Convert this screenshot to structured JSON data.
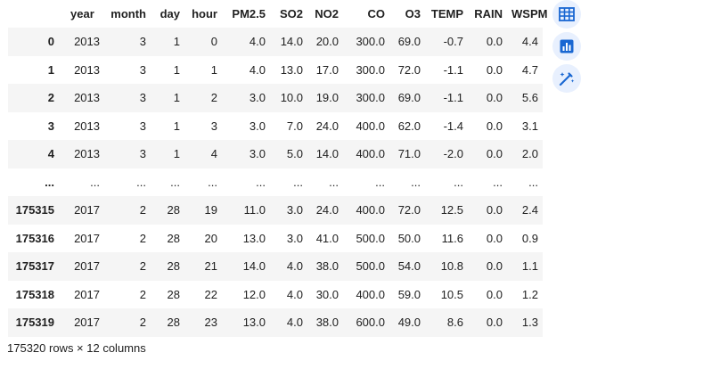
{
  "table": {
    "columns": [
      "",
      "year",
      "month",
      "day",
      "hour",
      "PM2.5",
      "SO2",
      "NO2",
      "CO",
      "O3",
      "TEMP",
      "RAIN",
      "WSPM"
    ],
    "rows": [
      [
        "0",
        "2013",
        "3",
        "1",
        "0",
        "4.0",
        "14.0",
        "20.0",
        "300.0",
        "69.0",
        "-0.7",
        "0.0",
        "4.4"
      ],
      [
        "1",
        "2013",
        "3",
        "1",
        "1",
        "4.0",
        "13.0",
        "17.0",
        "300.0",
        "72.0",
        "-1.1",
        "0.0",
        "4.7"
      ],
      [
        "2",
        "2013",
        "3",
        "1",
        "2",
        "3.0",
        "10.0",
        "19.0",
        "300.0",
        "69.0",
        "-1.1",
        "0.0",
        "5.6"
      ],
      [
        "3",
        "2013",
        "3",
        "1",
        "3",
        "3.0",
        "7.0",
        "24.0",
        "400.0",
        "62.0",
        "-1.4",
        "0.0",
        "3.1"
      ],
      [
        "4",
        "2013",
        "3",
        "1",
        "4",
        "3.0",
        "5.0",
        "14.0",
        "400.0",
        "71.0",
        "-2.0",
        "0.0",
        "2.0"
      ],
      [
        "...",
        "...",
        "...",
        "...",
        "...",
        "...",
        "...",
        "...",
        "...",
        "...",
        "...",
        "...",
        "..."
      ],
      [
        "175315",
        "2017",
        "2",
        "28",
        "19",
        "11.0",
        "3.0",
        "24.0",
        "400.0",
        "72.0",
        "12.5",
        "0.0",
        "2.4"
      ],
      [
        "175316",
        "2017",
        "2",
        "28",
        "20",
        "13.0",
        "3.0",
        "41.0",
        "500.0",
        "50.0",
        "11.6",
        "0.0",
        "0.9"
      ],
      [
        "175317",
        "2017",
        "2",
        "28",
        "21",
        "14.0",
        "4.0",
        "38.0",
        "500.0",
        "54.0",
        "10.8",
        "0.0",
        "1.1"
      ],
      [
        "175318",
        "2017",
        "2",
        "28",
        "22",
        "12.0",
        "4.0",
        "30.0",
        "400.0",
        "59.0",
        "10.5",
        "0.0",
        "1.2"
      ],
      [
        "175319",
        "2017",
        "2",
        "28",
        "23",
        "13.0",
        "4.0",
        "38.0",
        "600.0",
        "49.0",
        "8.6",
        "0.0",
        "1.3"
      ]
    ]
  },
  "shape_text": "175320 rows × 12 columns",
  "side_buttons": [
    {
      "icon": "table-icon"
    },
    {
      "icon": "bar-chart-icon"
    },
    {
      "icon": "magic-wand-icon"
    }
  ],
  "colors": {
    "row_stripe": "#f5f5f5",
    "icon_bg": "#e8f0fe",
    "icon_fg": "#1967d2"
  }
}
